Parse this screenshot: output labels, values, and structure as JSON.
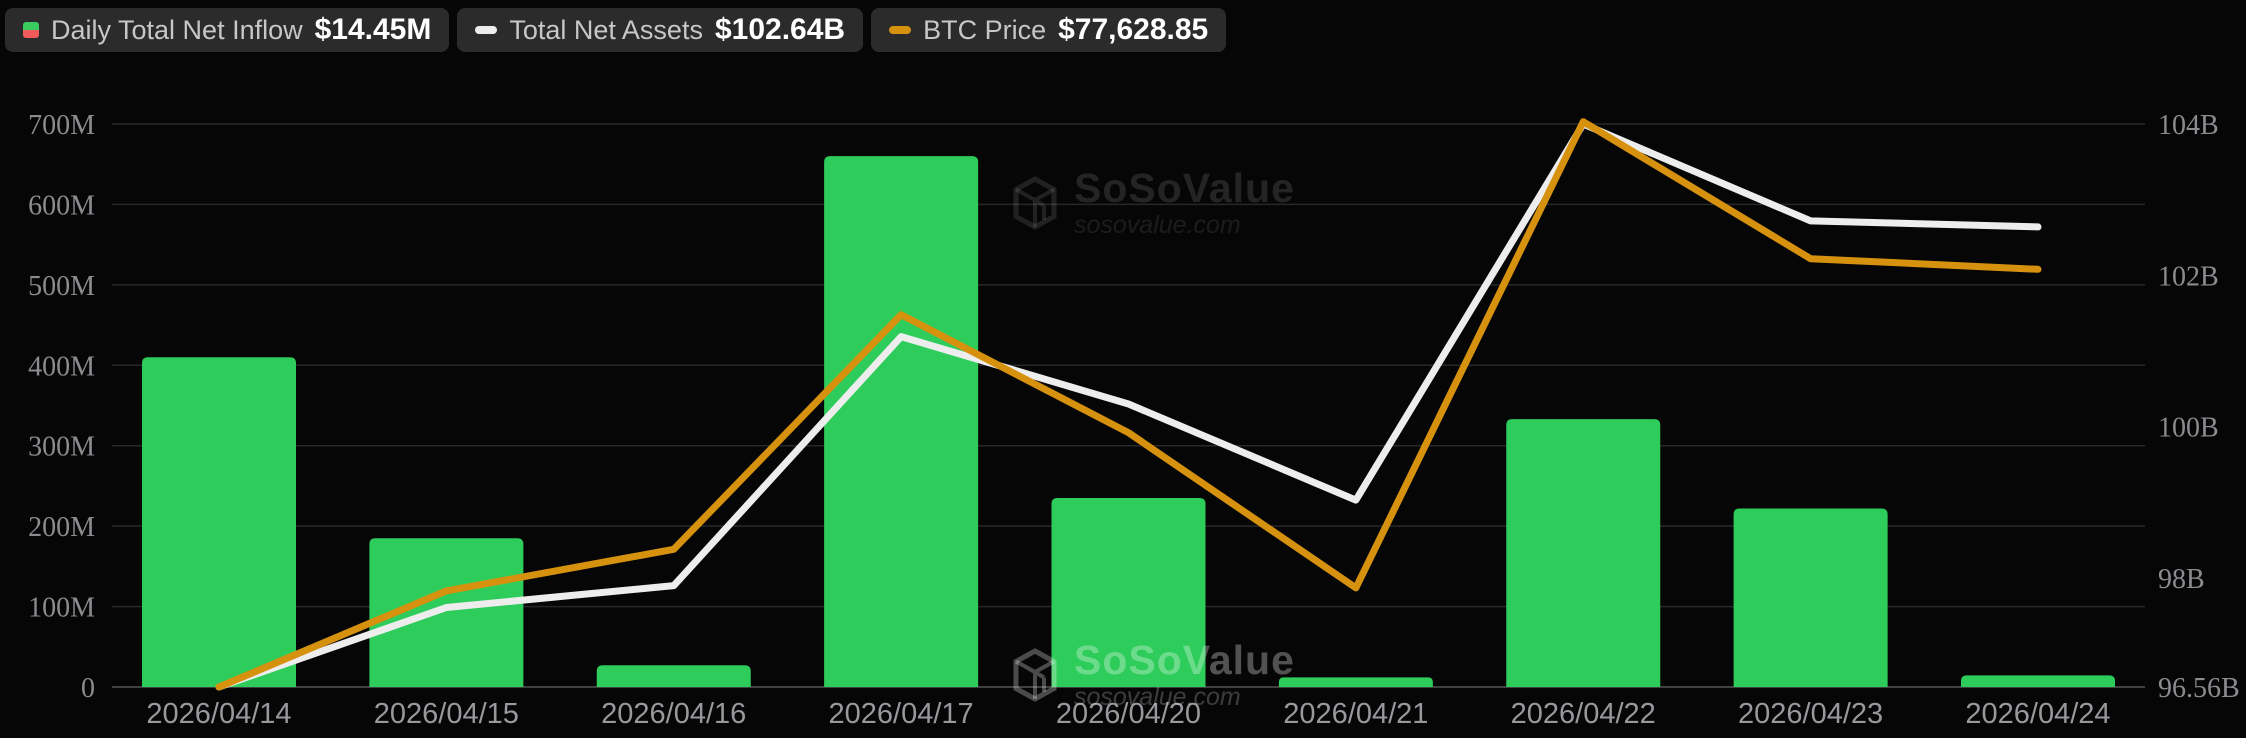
{
  "legend": {
    "items": [
      {
        "label": "Daily Total Net Inflow",
        "value": "$14.45M",
        "icon": "inflow-split-square-icon",
        "icon_colors": [
          "#3acb5f",
          "#f05a5a"
        ]
      },
      {
        "label": "Total Net Assets",
        "value": "$102.64B",
        "icon": "white-dash-icon",
        "icon_color": "#ededed"
      },
      {
        "label": "BTC Price",
        "value": "$77,628.85",
        "icon": "orange-dash-icon",
        "icon_color": "#d6910f"
      }
    ]
  },
  "watermark": {
    "brand": "SoSoValue",
    "domain": "sosovalue.com"
  },
  "chart_data": {
    "type": "combo-bar-line",
    "title": "",
    "categories": [
      "2026/04/14",
      "2026/04/15",
      "2026/04/16",
      "2026/04/17",
      "2026/04/20",
      "2026/04/21",
      "2026/04/22",
      "2026/04/23",
      "2026/04/24"
    ],
    "series": [
      {
        "name": "Daily Total Net Inflow",
        "type": "bar",
        "axis": "left",
        "unit": "USD millions",
        "color": "#2ecc5b",
        "values": [
          410,
          185,
          27,
          660,
          235,
          12,
          333,
          222,
          14.45
        ]
      },
      {
        "name": "Total Net Assets",
        "type": "line",
        "axis": "right",
        "unit": "USD billions",
        "color": "#ededed",
        "values": [
          96.56,
          97.61,
          97.9,
          101.19,
          100.3,
          99.03,
          104.0,
          102.72,
          102.64
        ]
      },
      {
        "name": "BTC Price",
        "type": "line",
        "axis": "right",
        "unit": "right-axis-equivalent (hidden price axis, latest $77,628.85)",
        "color": "#d6910f",
        "values": [
          96.56,
          97.83,
          98.38,
          101.48,
          99.92,
          97.87,
          104.03,
          102.22,
          102.08
        ]
      }
    ],
    "left_axis": {
      "tick_labels": [
        "700M",
        "600M",
        "500M",
        "400M",
        "300M",
        "200M",
        "100M",
        "0"
      ],
      "tick_values": [
        700,
        600,
        500,
        400,
        300,
        200,
        100,
        0
      ],
      "min": 0,
      "max": 700
    },
    "right_axis": {
      "tick_labels": [
        "104B",
        "102B",
        "100B",
        "98B",
        "96.56B"
      ],
      "tick_values": [
        104,
        102,
        100,
        98,
        96.56
      ],
      "min": 96.56,
      "max": 104
    },
    "grid": true,
    "legend_position": "top-left",
    "background": "#060607",
    "grid_color": "#282828",
    "axis_line_color": "#404040"
  }
}
